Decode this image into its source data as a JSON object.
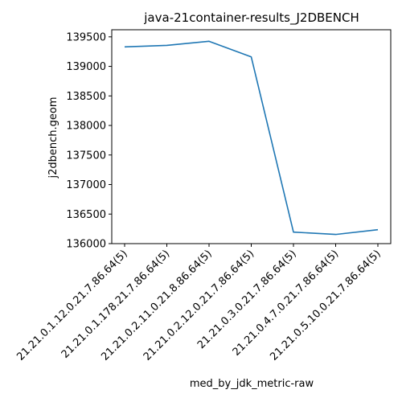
{
  "chart_data": {
    "type": "line",
    "title": "java-21container-results_J2DBENCH",
    "xlabel": "med_by_jdk_metric-raw",
    "ylabel": "j2dbench.geom",
    "categories": [
      "21.21.0.1.12.0.21.7.86.64(5)",
      "21.21.0.1.178.21.7.86.64(5)",
      "21.21.0.2.11.0.21.8.86.64(5)",
      "21.21.0.2.12.0.21.7.86.64(5)",
      "21.21.0.3.0.21.7.86.64(5)",
      "21.21.0.4.7.0.21.7.86.64(5)",
      "21.21.0.5.10.0.21.7.86.64(5)"
    ],
    "series": [
      {
        "values": [
          139330,
          139355,
          139425,
          139160,
          136195,
          136155,
          136235
        ],
        "color": "#1f77b4"
      }
    ],
    "ylim": [
      136000,
      139620
    ],
    "yticks": [
      136000,
      136500,
      137000,
      137500,
      138000,
      138500,
      139000,
      139500
    ],
    "grid": false,
    "legend": "none"
  }
}
